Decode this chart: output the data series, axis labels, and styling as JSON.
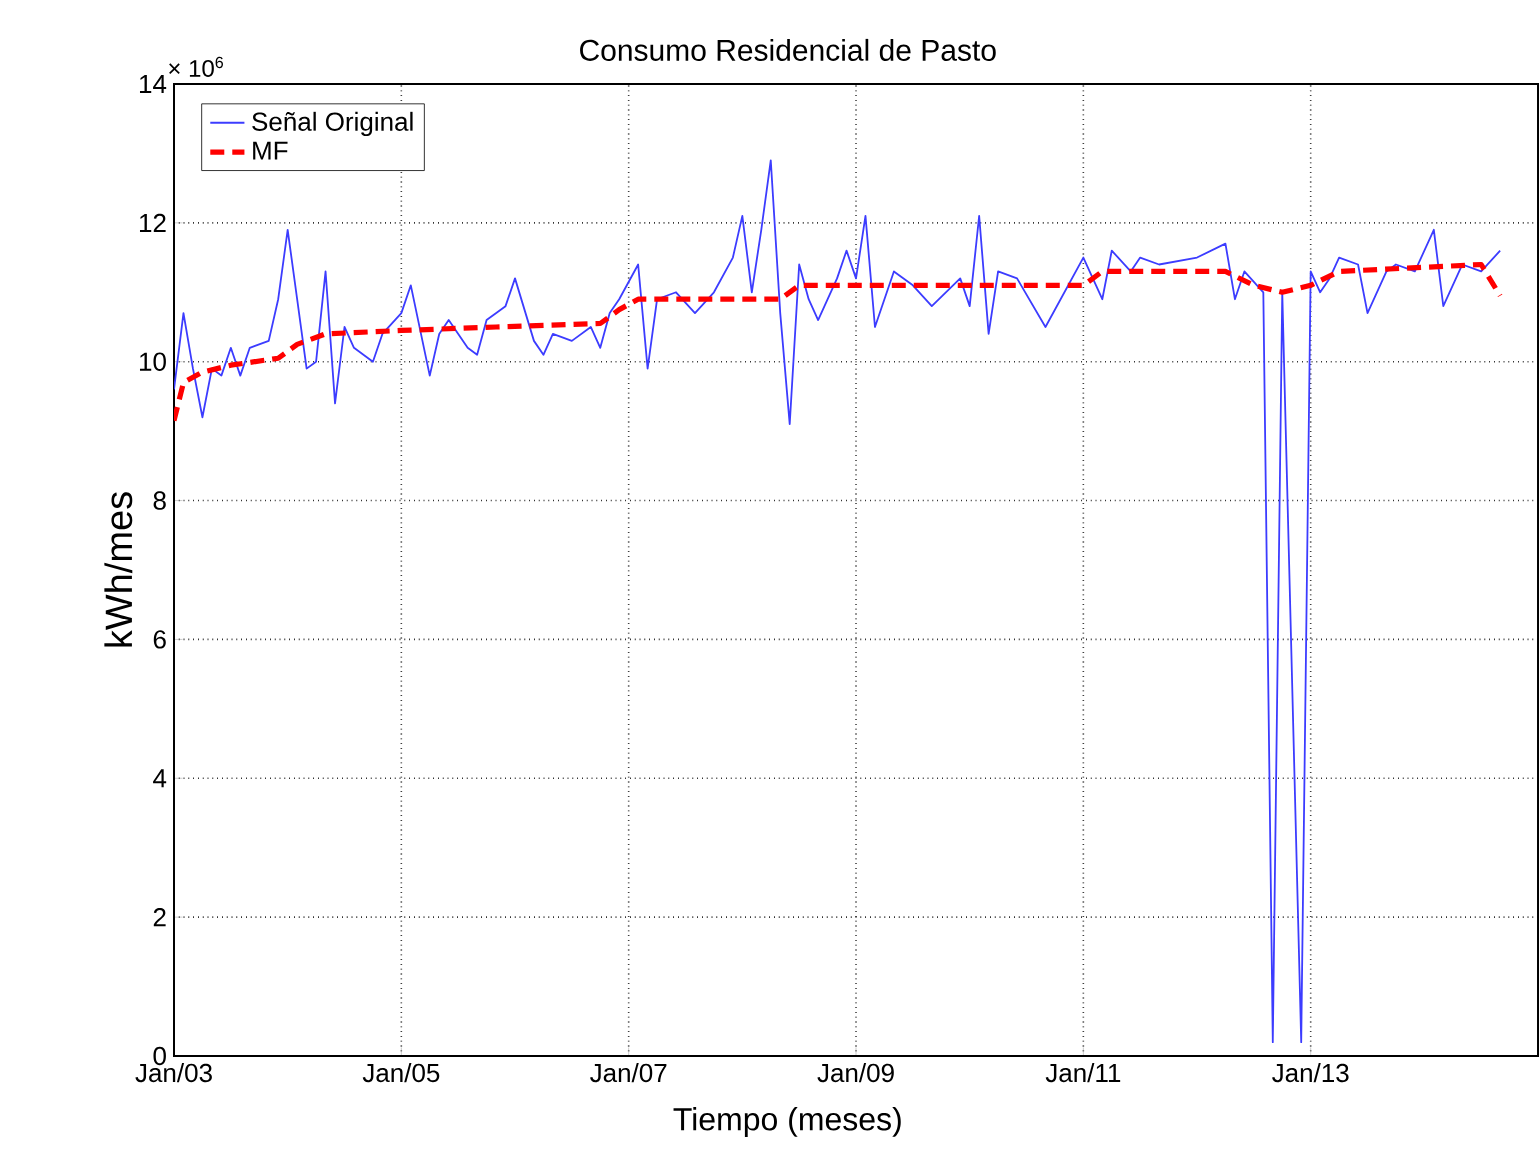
{
  "chart_data": {
    "type": "line",
    "title": "Consumo Residencial de Pasto",
    "xlabel": "Tiempo (meses)",
    "ylabel": "kWh/mes",
    "annotations": [
      "× 10$^{6}$"
    ],
    "xlim": [
      "2003-01",
      "2015-01"
    ],
    "xticks": [
      {
        "value": "2003-01",
        "label": "Jan/03"
      },
      {
        "value": "2005-01",
        "label": "Jan/05"
      },
      {
        "value": "2007-01",
        "label": "Jan/07"
      },
      {
        "value": "2009-01",
        "label": "Jan/09"
      },
      {
        "value": "2011-01",
        "label": "Jan/11"
      },
      {
        "value": "2013-01",
        "label": "Jan/13"
      }
    ],
    "ylim": [
      0,
      14
    ],
    "yticks": [
      0,
      2,
      4,
      6,
      8,
      10,
      12,
      14
    ],
    "grid": true,
    "legend": "top left",
    "marker": "none",
    "series": [
      {
        "name": "Señal Original",
        "color": "#3c3cff",
        "line_style": "solid",
        "x": [
          "2003-01",
          "2003-02",
          "2003-03",
          "2003-04",
          "2003-05",
          "2003-06",
          "2003-07",
          "2003-08",
          "2003-09",
          "2003-11",
          "2003-12",
          "2004-01",
          "2004-02",
          "2004-03",
          "2004-04",
          "2004-05",
          "2004-06",
          "2004-07",
          "2004-08",
          "2004-10",
          "2004-11",
          "2005-01",
          "2005-02",
          "2005-04",
          "2005-05",
          "2005-06",
          "2005-08",
          "2005-09",
          "2005-10",
          "2005-12",
          "2006-01",
          "2006-03",
          "2006-04",
          "2006-05",
          "2006-07",
          "2006-09",
          "2006-10",
          "2006-11",
          "2006-12",
          "2007-02",
          "2007-03",
          "2007-04",
          "2007-06",
          "2007-08",
          "2007-10",
          "2007-12",
          "2008-01",
          "2008-02",
          "2008-03",
          "2008-04",
          "2008-05",
          "2008-06",
          "2008-07",
          "2008-08",
          "2008-09",
          "2008-11",
          "2008-12",
          "2009-01",
          "2009-02",
          "2009-03",
          "2009-05",
          "2009-07",
          "2009-09",
          "2009-12",
          "2010-01",
          "2010-02",
          "2010-03",
          "2010-04",
          "2010-06",
          "2010-09",
          "2010-11",
          "2011-01",
          "2011-03",
          "2011-04",
          "2011-06",
          "2011-07",
          "2011-09",
          "2012-01",
          "2012-04",
          "2012-05",
          "2012-06",
          "2012-08",
          "2012-09",
          "2012-10",
          "2012-12",
          "2013-01",
          "2013-02",
          "2013-03",
          "2013-04",
          "2013-06",
          "2013-07",
          "2013-09",
          "2013-10",
          "2013-12",
          "2014-02",
          "2014-03",
          "2014-05",
          "2014-07",
          "2014-09"
        ],
        "values": [
          9.6,
          10.7,
          9.9,
          9.2,
          9.9,
          9.8,
          10.2,
          9.8,
          10.2,
          10.3,
          10.9,
          11.9,
          10.9,
          9.9,
          10.0,
          11.3,
          9.4,
          10.5,
          10.2,
          10.0,
          10.4,
          10.7,
          11.1,
          9.8,
          10.4,
          10.6,
          10.2,
          10.1,
          10.6,
          10.8,
          11.2,
          10.3,
          10.1,
          10.4,
          10.3,
          10.5,
          10.2,
          10.7,
          10.9,
          11.4,
          9.9,
          10.9,
          11.0,
          10.7,
          11.0,
          11.5,
          12.1,
          11.0,
          11.9,
          12.9,
          10.7,
          9.1,
          11.4,
          10.9,
          10.6,
          11.2,
          11.6,
          11.2,
          12.1,
          10.5,
          11.3,
          11.1,
          10.8,
          11.2,
          10.8,
          12.1,
          10.4,
          11.3,
          11.2,
          10.5,
          11.0,
          11.5,
          10.9,
          11.6,
          11.3,
          11.5,
          11.4,
          11.5,
          11.7,
          10.9,
          11.3,
          11.0,
          0.2,
          11.0,
          0.2,
          11.3,
          11.0,
          11.2,
          11.5,
          11.4,
          10.7,
          11.3,
          11.4,
          11.3,
          11.9,
          10.8,
          11.4,
          11.3,
          11.6
        ]
      },
      {
        "name": "MF",
        "color": "#ff0000",
        "line_style": "dashed",
        "x": [
          "2003-01",
          "2003-02",
          "2003-04",
          "2003-07",
          "2003-12",
          "2004-02",
          "2004-05",
          "2005-01",
          "2005-11",
          "2006-10",
          "2006-12",
          "2007-02",
          "2008-05",
          "2008-07",
          "2011-01",
          "2011-03",
          "2012-04",
          "2012-07",
          "2012-10",
          "2013-01",
          "2013-04",
          "2014-07",
          "2014-09"
        ],
        "values": [
          9.15,
          9.7,
          9.85,
          9.95,
          10.05,
          10.25,
          10.4,
          10.45,
          10.5,
          10.55,
          10.75,
          10.9,
          10.9,
          11.1,
          11.1,
          11.3,
          11.3,
          11.1,
          11.0,
          11.1,
          11.3,
          11.4,
          10.95
        ]
      }
    ]
  }
}
